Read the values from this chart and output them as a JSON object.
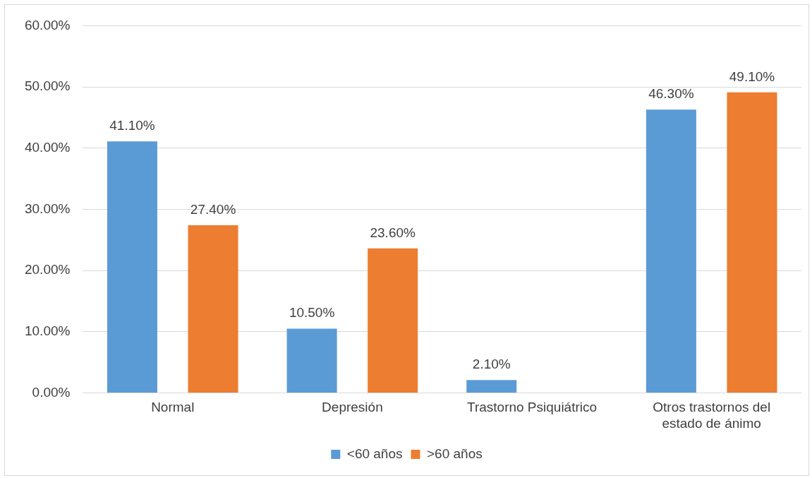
{
  "chart_data": {
    "type": "bar",
    "categories": [
      "Normal",
      "Depresión",
      "Trastorno Psiquiátrico",
      "Otros trastornos del estado de ánimo"
    ],
    "series": [
      {
        "name": "<60 años",
        "color": "#5b9bd5",
        "values": [
          41.1,
          10.5,
          2.1,
          46.3
        ],
        "value_labels": [
          "41.10%",
          "10.50%",
          "2.10%",
          "46.30%"
        ]
      },
      {
        "name": ">60 años",
        "color": "#ed7d31",
        "values": [
          27.4,
          23.6,
          null,
          49.1
        ],
        "value_labels": [
          "27.40%",
          "23.60%",
          null,
          "49.10%"
        ]
      }
    ],
    "ylim": [
      0,
      60
    ],
    "yticks": [
      {
        "value": 0,
        "label": "0.00%"
      },
      {
        "value": 10,
        "label": "10.00%"
      },
      {
        "value": 20,
        "label": "20.00%"
      },
      {
        "value": 30,
        "label": "30.00%"
      },
      {
        "value": 40,
        "label": "40.00%"
      },
      {
        "value": 50,
        "label": "50.00%"
      },
      {
        "value": 60,
        "label": "60.00%"
      }
    ],
    "grid": "y",
    "legend": "bottom"
  }
}
